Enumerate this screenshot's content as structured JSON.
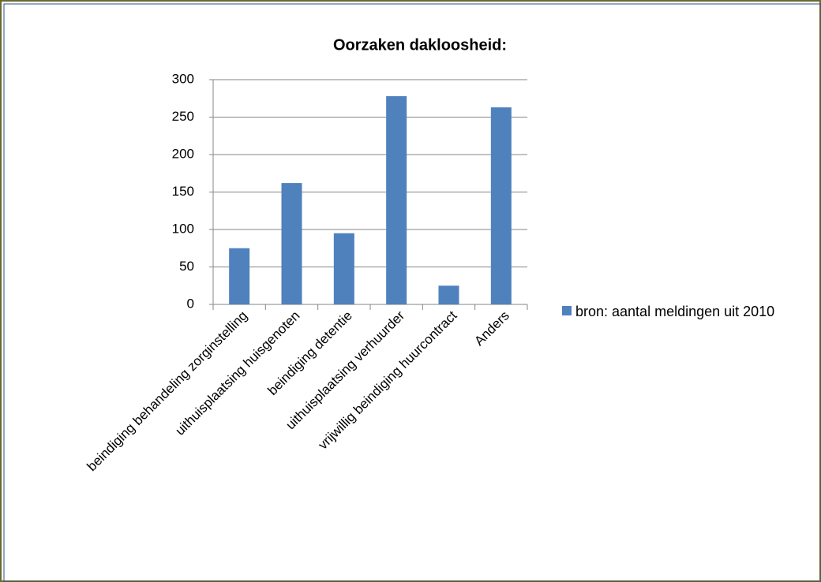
{
  "chart_data": {
    "type": "bar",
    "title": "Oorzaken dakloosheid:",
    "categories": [
      "beindiging behandeling zorginstelling",
      "uithuisplaatsing huisgenoten",
      "beindiging detentie",
      "uithuisplaatsing verhuurder",
      "vrijwillig beindiging huurcontract",
      "Anders"
    ],
    "series": [
      {
        "name": "bron: aantal meldingen uit 2010",
        "color": "#4f81bd",
        "values": [
          75,
          162,
          95,
          278,
          25,
          263
        ]
      }
    ],
    "ylim": [
      0,
      300
    ],
    "yticks": [
      0,
      50,
      100,
      150,
      200,
      250,
      300
    ],
    "grid": true,
    "legend": "right"
  }
}
